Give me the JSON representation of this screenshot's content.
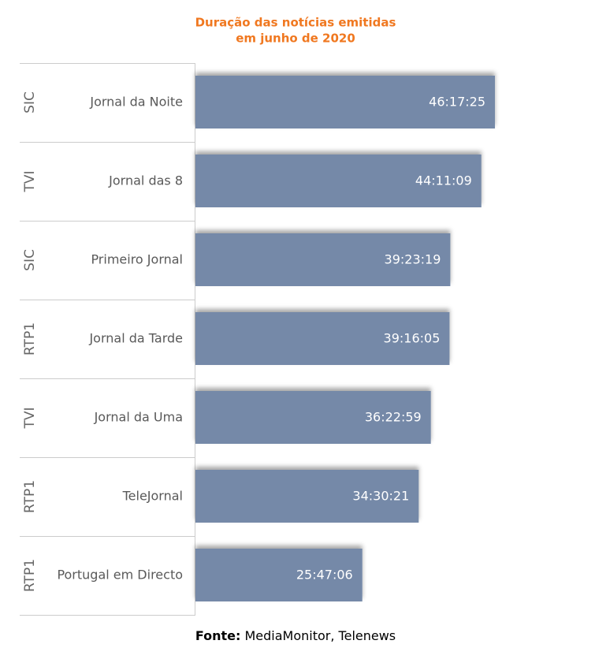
{
  "chart_data": {
    "type": "bar",
    "title": [
      "Duração das notícias emitidas",
      "em junho de 2020"
    ],
    "groups": [
      "SIC",
      "TVI",
      "SIC",
      "RTP1",
      "TVI",
      "RTP1",
      "RTP1"
    ],
    "categories": [
      "Jornal da Noite",
      "Jornal das 8",
      "Primeiro Jornal",
      "Jornal da Tarde",
      "Jornal da Uma",
      "TeleJornal",
      "Portugal em Directo"
    ],
    "values": [
      46.290278,
      44.185833,
      39.388611,
      39.268056,
      36.383056,
      34.505833,
      25.785
    ],
    "value_labels": [
      "46:17:25",
      "44:11:09",
      "39:23:19",
      "39:16:05",
      "36:22:59",
      "34:30:21",
      "25:47:06"
    ],
    "color": "#7489a8",
    "source": {
      "label": "Fonte:",
      "text": "MediaMonitor, Telenews"
    }
  }
}
